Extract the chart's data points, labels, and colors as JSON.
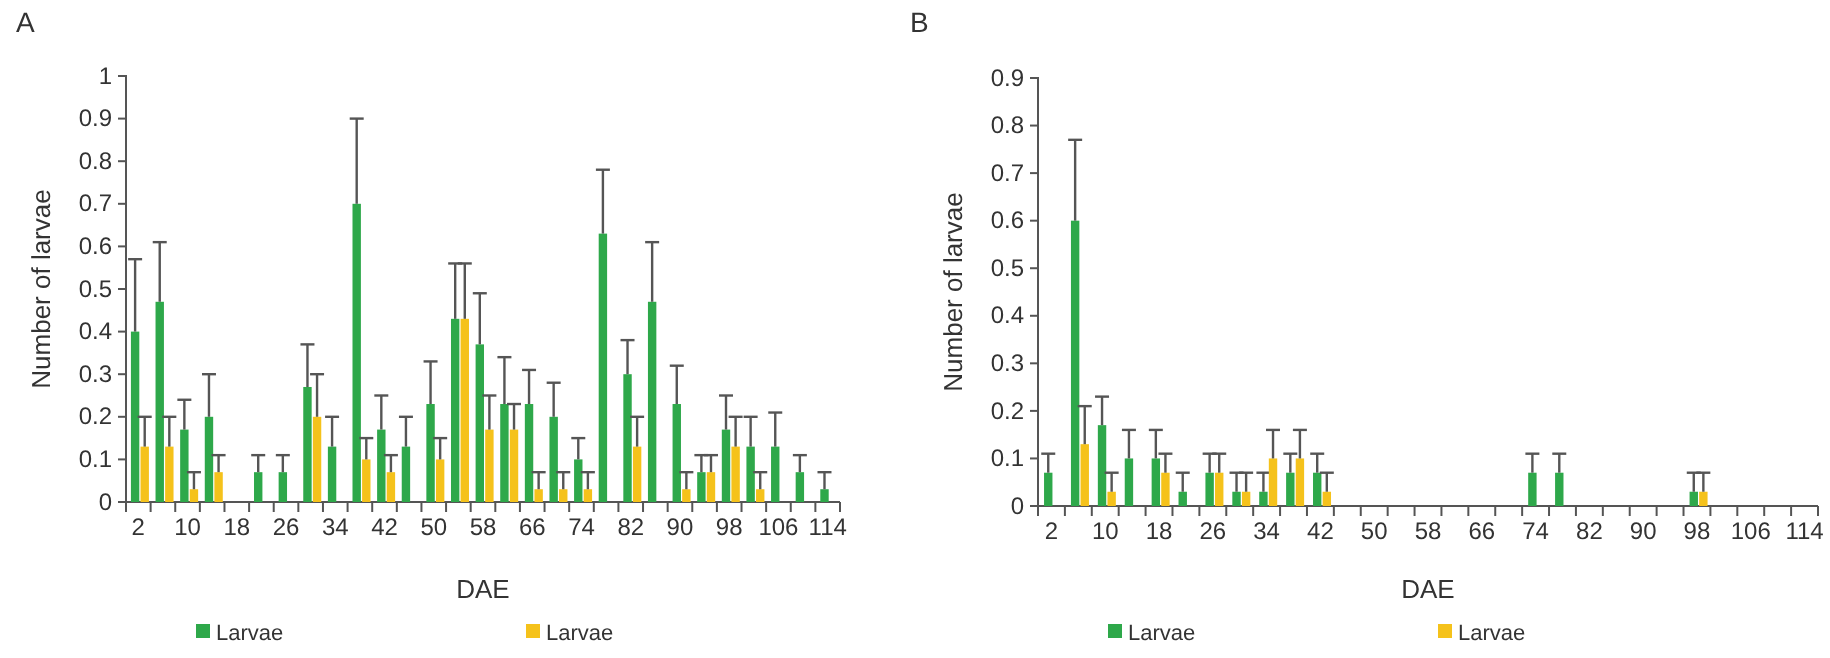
{
  "chart_data": [
    {
      "type": "bar",
      "title": "A",
      "xlabel": "DAE",
      "ylabel": "Number of larvae",
      "legend": "bottom",
      "ylim": [
        0,
        1
      ],
      "yticks": [
        0,
        0.1,
        0.2,
        0.3,
        0.4,
        0.5,
        0.6,
        0.7,
        0.8,
        0.9,
        1
      ],
      "categories": [
        "2",
        null,
        "10",
        null,
        "18",
        null,
        "26",
        null,
        "34",
        null,
        "42",
        null,
        "50",
        null,
        "58",
        null,
        "66",
        null,
        "74",
        null,
        "82",
        null,
        "90",
        null,
        "98",
        null,
        "106",
        null,
        "114"
      ],
      "series": [
        {
          "name": "Larvae",
          "color": "#2ea84a",
          "values": [
            0.4,
            0.47,
            0.17,
            0.2,
            null,
            0.07,
            0.07,
            0.27,
            0.13,
            0.7,
            0.17,
            0.13,
            0.23,
            0.43,
            0.37,
            0.23,
            0.23,
            0.2,
            0.1,
            0.63,
            0.3,
            0.47,
            0.23,
            0.07,
            0.17,
            0.13,
            0.13,
            0.07,
            0.03
          ],
          "errors": [
            [
              0.4,
              0.57
            ],
            [
              0.47,
              0.61
            ],
            [
              0.17,
              0.24
            ],
            [
              0.2,
              0.3
            ],
            null,
            [
              0.07,
              0.11
            ],
            [
              0.07,
              0.11
            ],
            [
              0.27,
              0.37
            ],
            [
              0.13,
              0.2
            ],
            [
              0.7,
              0.9
            ],
            [
              0.17,
              0.25
            ],
            [
              0.13,
              0.2
            ],
            [
              0.23,
              0.33
            ],
            [
              0.43,
              0.56
            ],
            [
              0.37,
              0.49
            ],
            [
              0.23,
              0.34
            ],
            [
              0.23,
              0.31
            ],
            [
              0.2,
              0.28
            ],
            [
              0.1,
              0.15
            ],
            [
              0.63,
              0.78
            ],
            [
              0.3,
              0.38
            ],
            [
              0.47,
              0.61
            ],
            [
              0.23,
              0.32
            ],
            [
              0.07,
              0.11
            ],
            [
              0.17,
              0.25
            ],
            [
              0.13,
              0.2
            ],
            [
              0.13,
              0.21
            ],
            [
              0.07,
              0.11
            ],
            [
              0.03,
              0.07
            ]
          ]
        },
        {
          "name": "Larvae",
          "color": "#f5c21b",
          "values": [
            0.13,
            0.13,
            0.03,
            0.07,
            null,
            null,
            null,
            0.2,
            null,
            0.1,
            0.07,
            null,
            0.1,
            0.43,
            0.17,
            0.17,
            0.03,
            0.03,
            0.03,
            null,
            0.13,
            null,
            0.03,
            0.07,
            0.13,
            0.03,
            null,
            null,
            null
          ],
          "errors": [
            [
              0.13,
              0.2
            ],
            [
              0.13,
              0.2
            ],
            [
              0.03,
              0.07
            ],
            [
              0.07,
              0.11
            ],
            null,
            null,
            null,
            [
              0.2,
              0.3
            ],
            null,
            [
              0.1,
              0.15
            ],
            [
              0.07,
              0.11
            ],
            null,
            [
              0.1,
              0.15
            ],
            [
              0.43,
              0.56
            ],
            [
              0.17,
              0.25
            ],
            [
              0.17,
              0.23
            ],
            [
              0.03,
              0.07
            ],
            [
              0.03,
              0.07
            ],
            [
              0.03,
              0.07
            ],
            null,
            [
              0.13,
              0.2
            ],
            null,
            [
              0.03,
              0.07
            ],
            [
              0.07,
              0.11
            ],
            [
              0.13,
              0.2
            ],
            [
              0.03,
              0.07
            ],
            null,
            null,
            null
          ]
        }
      ]
    },
    {
      "type": "bar",
      "title": "B",
      "xlabel": "DAE",
      "ylabel": "Number of larvae",
      "legend": "bottom",
      "ylim": [
        0,
        0.9
      ],
      "yticks": [
        0,
        0.1,
        0.2,
        0.3,
        0.4,
        0.5,
        0.6,
        0.7,
        0.8,
        0.9
      ],
      "categories": [
        "2",
        null,
        "10",
        null,
        "18",
        null,
        "26",
        null,
        "34",
        null,
        "42",
        null,
        "50",
        null,
        "58",
        null,
        "66",
        null,
        "74",
        null,
        "82",
        null,
        "90",
        null,
        "98",
        null,
        "106",
        null,
        "114"
      ],
      "series": [
        {
          "name": "Larvae",
          "color": "#2ea84a",
          "values": [
            0.07,
            0.6,
            0.17,
            0.1,
            0.1,
            0.03,
            0.07,
            0.03,
            0.03,
            0.07,
            0.07,
            null,
            null,
            null,
            null,
            null,
            null,
            null,
            0.07,
            0.07,
            null,
            null,
            null,
            null,
            0.03,
            null,
            null,
            null,
            null
          ],
          "errors": [
            [
              0.07,
              0.11
            ],
            [
              0.6,
              0.77
            ],
            [
              0.17,
              0.23
            ],
            [
              0.1,
              0.16
            ],
            [
              0.1,
              0.16
            ],
            [
              0.03,
              0.07
            ],
            [
              0.07,
              0.11
            ],
            [
              0.03,
              0.07
            ],
            [
              0.03,
              0.07
            ],
            [
              0.07,
              0.11
            ],
            [
              0.07,
              0.11
            ],
            null,
            null,
            null,
            null,
            null,
            null,
            null,
            [
              0.07,
              0.11
            ],
            [
              0.07,
              0.11
            ],
            null,
            null,
            null,
            null,
            [
              0.03,
              0.07
            ],
            null,
            null,
            null,
            null
          ]
        },
        {
          "name": "Larvae",
          "color": "#f5c21b",
          "values": [
            null,
            0.13,
            0.03,
            null,
            0.07,
            null,
            0.07,
            0.03,
            0.1,
            0.1,
            0.03,
            null,
            null,
            null,
            null,
            null,
            null,
            null,
            null,
            null,
            null,
            null,
            null,
            null,
            0.03,
            null,
            null,
            null,
            null
          ],
          "errors": [
            null,
            [
              0.13,
              0.21
            ],
            [
              0.03,
              0.07
            ],
            null,
            [
              0.07,
              0.11
            ],
            null,
            [
              0.07,
              0.11
            ],
            [
              0.03,
              0.07
            ],
            [
              0.1,
              0.16
            ],
            [
              0.1,
              0.16
            ],
            [
              0.03,
              0.07
            ],
            null,
            null,
            null,
            null,
            null,
            null,
            null,
            null,
            null,
            null,
            null,
            null,
            null,
            [
              0.03,
              0.07
            ],
            null,
            null,
            null,
            null
          ]
        }
      ]
    }
  ]
}
